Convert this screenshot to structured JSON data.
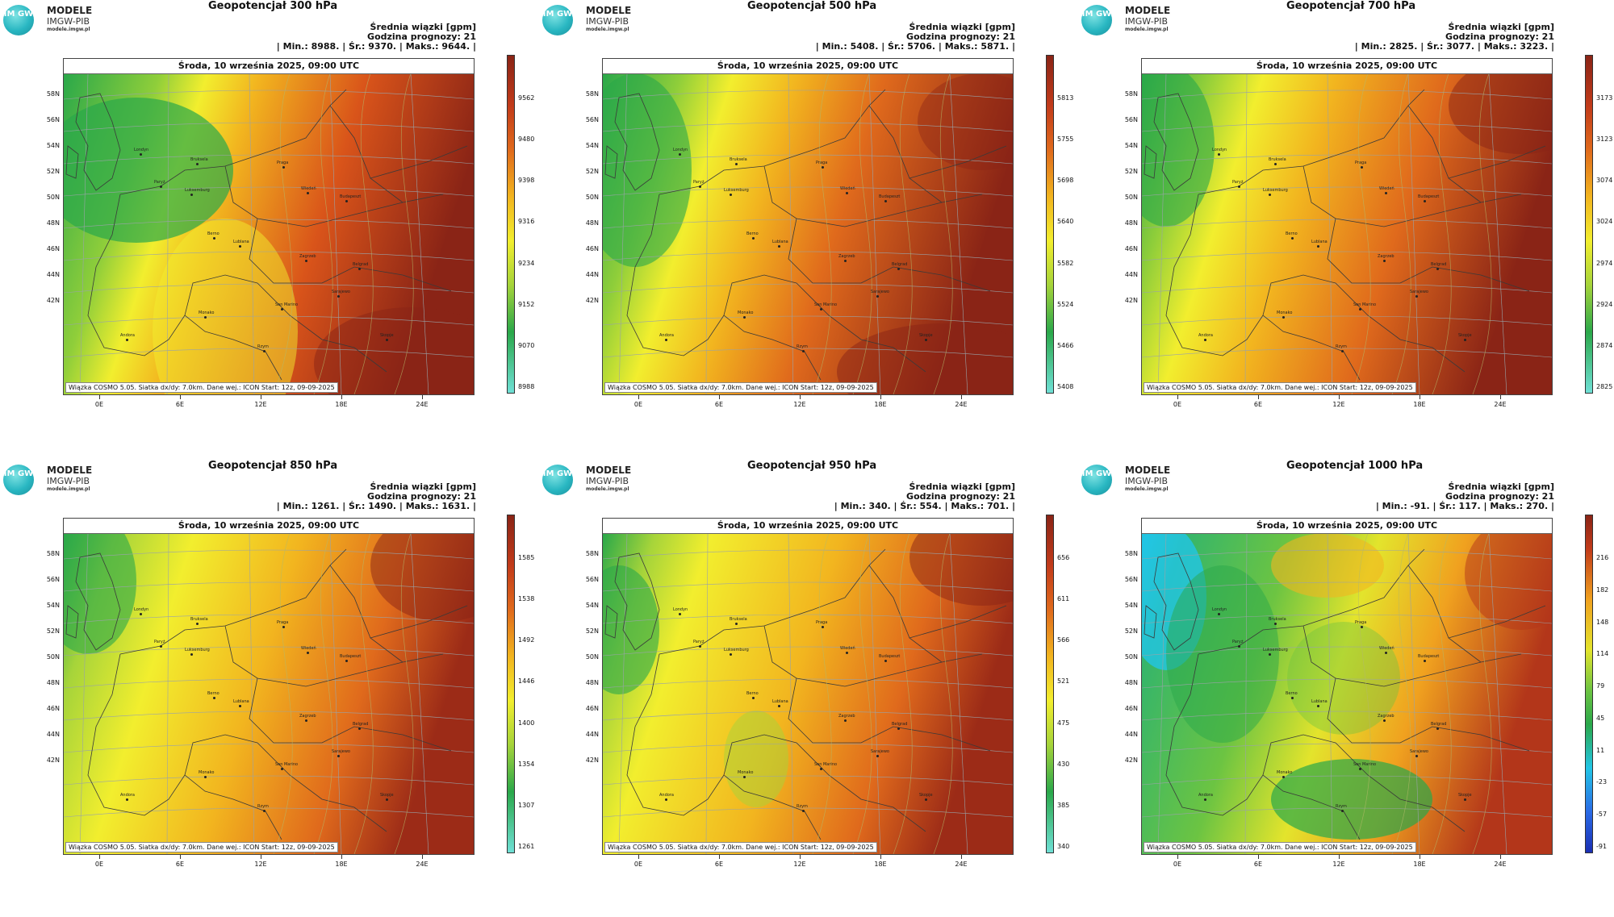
{
  "logo": {
    "badge": "IM GW",
    "line1": "MODELE",
    "line2": "IMGW-PIB",
    "line3": "modele.imgw.pl"
  },
  "date_header": "Środa, 10 września 2025, 09:00 UTC",
  "footer": "Wiązka COSMO 5.05. Siatka dx/dy: 7.0km. Dane wej.: ICON Start: 12z, 09-09-2025",
  "lat_labels": [
    "58N",
    "56N",
    "54N",
    "52N",
    "50N",
    "48N",
    "46N",
    "44N",
    "42N"
  ],
  "lon_labels": [
    "0E",
    "6E",
    "12E",
    "18E",
    "24E"
  ],
  "cities": [
    {
      "name": "Londyn"
    },
    {
      "name": "Bruksela"
    },
    {
      "name": "Paryż"
    },
    {
      "name": "Luksemburg"
    },
    {
      "name": "Praga"
    },
    {
      "name": "Wiedeń"
    },
    {
      "name": "Budapeszt"
    },
    {
      "name": "Berno"
    },
    {
      "name": "Lublana"
    },
    {
      "name": "Zagrzeb"
    },
    {
      "name": "Belgrad"
    },
    {
      "name": "Sarajewo"
    },
    {
      "name": "San Marino"
    },
    {
      "name": "Monako"
    },
    {
      "name": "Andora"
    },
    {
      "name": "Rzym"
    },
    {
      "name": "Skopje"
    }
  ],
  "panels": [
    {
      "title": "Geopotencjał 300 hPa",
      "info1": "Średnia wiązki [gpm]",
      "info2": "Godzina prognozy: 21",
      "info3": "| Min.:     8988. | Śr.:     9370. | Maks.:     9644. |",
      "colorbar": [
        "9562",
        "9480",
        "9398",
        "9316",
        "9234",
        "9152",
        "9070",
        "8988"
      ]
    },
    {
      "title": "Geopotencjał 500 hPa",
      "info1": "Średnia wiązki [gpm]",
      "info2": "Godzina prognozy: 21",
      "info3": "| Min.:     5408. | Śr.:     5706. | Maks.:     5871. |",
      "colorbar": [
        "5813",
        "5755",
        "5698",
        "5640",
        "5582",
        "5524",
        "5466",
        "5408"
      ]
    },
    {
      "title": "Geopotencjał 700 hPa",
      "info1": "Średnia wiązki [gpm]",
      "info2": "Godzina prognozy: 21",
      "info3": "| Min.:     2825. | Śr.:     3077. | Maks.:     3223. |",
      "colorbar": [
        "3173",
        "3123",
        "3074",
        "3024",
        "2974",
        "2924",
        "2874",
        "2825"
      ]
    },
    {
      "title": "Geopotencjał 850 hPa",
      "info1": "Średnia wiązki [gpm]",
      "info2": "Godzina prognozy: 21",
      "info3": "| Min.:     1261. | Śr.:     1490. | Maks.:     1631. |",
      "colorbar": [
        "1585",
        "1538",
        "1492",
        "1446",
        "1400",
        "1354",
        "1307",
        "1261"
      ]
    },
    {
      "title": "Geopotencjał 950 hPa",
      "info1": "Średnia wiązki [gpm]",
      "info2": "Godzina prognozy: 21",
      "info3": "| Min.:     340. | Śr.:     554. | Maks.:     701. |",
      "colorbar": [
        "656",
        "611",
        "566",
        "521",
        "475",
        "430",
        "385",
        "340"
      ]
    },
    {
      "title": "Geopotencjał 1000 hPa",
      "info1": "Średnia wiązki [gpm]",
      "info2": "Godzina prognozy: 21",
      "info3": "| Min.:     -91. | Śr.:     117. | Maks.:     270. |",
      "colorbar": [
        "216",
        "182",
        "148",
        "114",
        "79",
        "45",
        "11",
        "-23",
        "-57",
        "-91"
      ]
    }
  ]
}
